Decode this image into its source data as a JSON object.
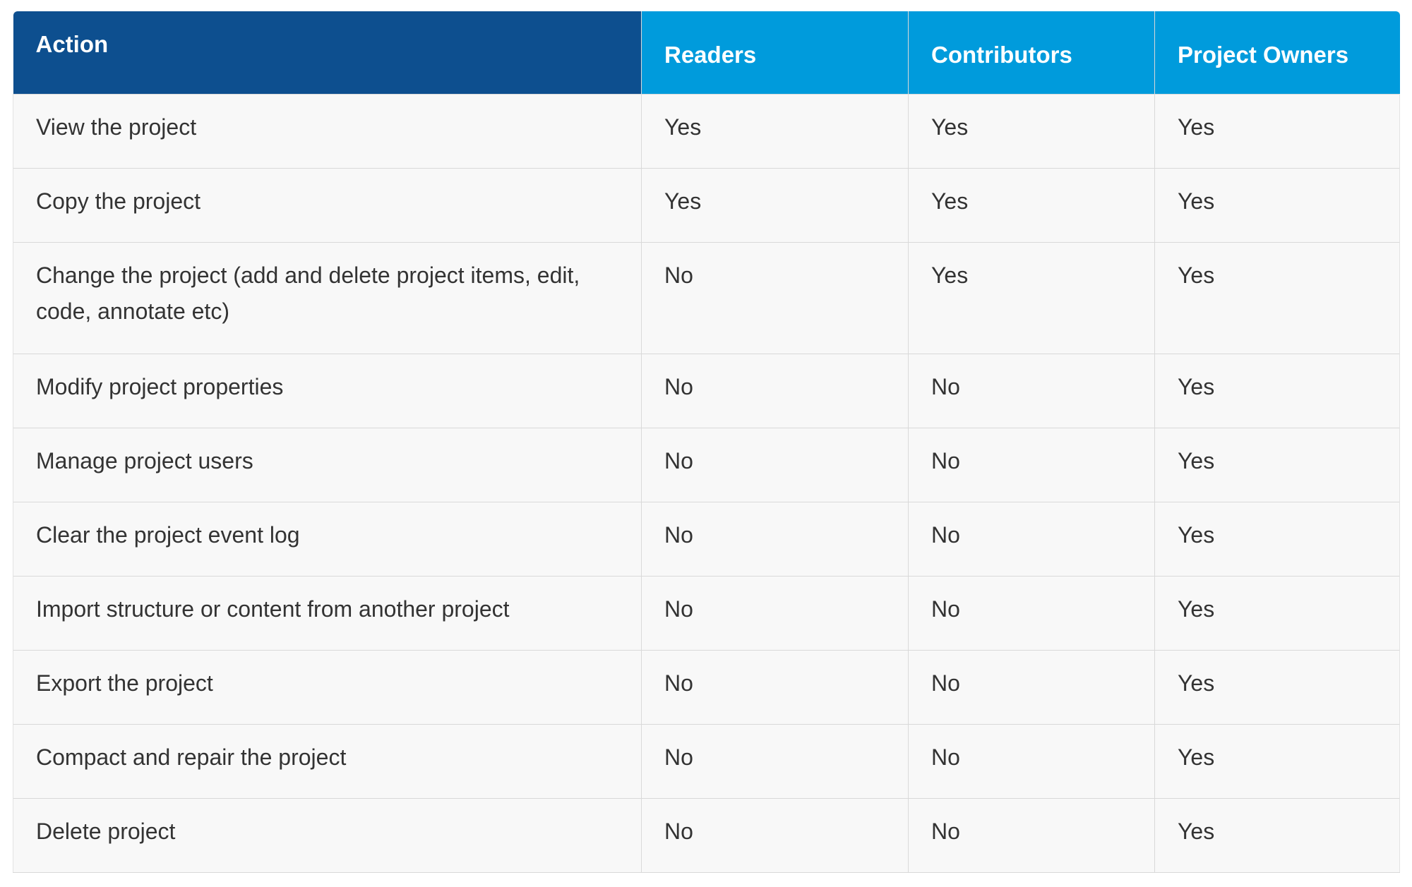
{
  "table": {
    "headers": {
      "action": "Action",
      "readers": "Readers",
      "contributors": "Contributors",
      "owners": "Project Owners"
    },
    "rows": [
      {
        "action": "View the project",
        "readers": "Yes",
        "contributors": "Yes",
        "owners": "Yes"
      },
      {
        "action": "Copy the project",
        "readers": "Yes",
        "contributors": "Yes",
        "owners": "Yes"
      },
      {
        "action": "Change the project (add and delete project items, edit, code, annotate etc)",
        "readers": "No",
        "contributors": "Yes",
        "owners": "Yes"
      },
      {
        "action": "Modify project properties",
        "readers": "No",
        "contributors": "No",
        "owners": "Yes"
      },
      {
        "action": "Manage project users",
        "readers": "No",
        "contributors": "No",
        "owners": "Yes"
      },
      {
        "action": "Clear the project event log",
        "readers": "No",
        "contributors": "No",
        "owners": "Yes"
      },
      {
        "action": "Import structure or content from another project",
        "readers": "No",
        "contributors": "No",
        "owners": "Yes"
      },
      {
        "action": "Export the project",
        "readers": "No",
        "contributors": "No",
        "owners": "Yes"
      },
      {
        "action": "Compact and repair the project",
        "readers": "No",
        "contributors": "No",
        "owners": "Yes"
      },
      {
        "action": "Delete project",
        "readers": "No",
        "contributors": "No",
        "owners": "Yes"
      }
    ]
  },
  "colors": {
    "action_header_bg": "#0d4f8f",
    "role_header_bg": "#009bdc",
    "row_bg": "#f8f8f8",
    "border": "#d9d9d9",
    "text": "#333333"
  }
}
